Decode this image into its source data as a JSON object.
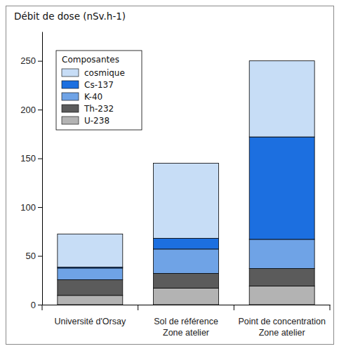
{
  "chart_data": {
    "type": "bar",
    "stacked": true,
    "y_label": "Débit de dose (nSv.h-1)",
    "legend_title": "Composantes",
    "legend": "upper left",
    "categories": [
      "Université d'Orsay",
      "Sol de référence\nZone atelier",
      "Point de concentration\nZone atelier"
    ],
    "series": [
      {
        "name": "U-238",
        "color": "#b3b3b3",
        "values": [
          9.5,
          17,
          19
        ]
      },
      {
        "name": "Th-232",
        "color": "#5b5b5b",
        "values": [
          16,
          15,
          18
        ]
      },
      {
        "name": "K-40",
        "color": "#6fa3e6",
        "values": [
          12,
          25,
          30
        ]
      },
      {
        "name": "Cs-137",
        "color": "#1c6fe0",
        "values": [
          1,
          11,
          105
        ]
      },
      {
        "name": "cosmique",
        "color": "#c7ddf6",
        "values": [
          34,
          77,
          78
        ]
      }
    ],
    "ylim": [
      0,
      280
    ],
    "yticks": [
      0,
      50,
      100,
      150,
      200,
      250
    ]
  }
}
